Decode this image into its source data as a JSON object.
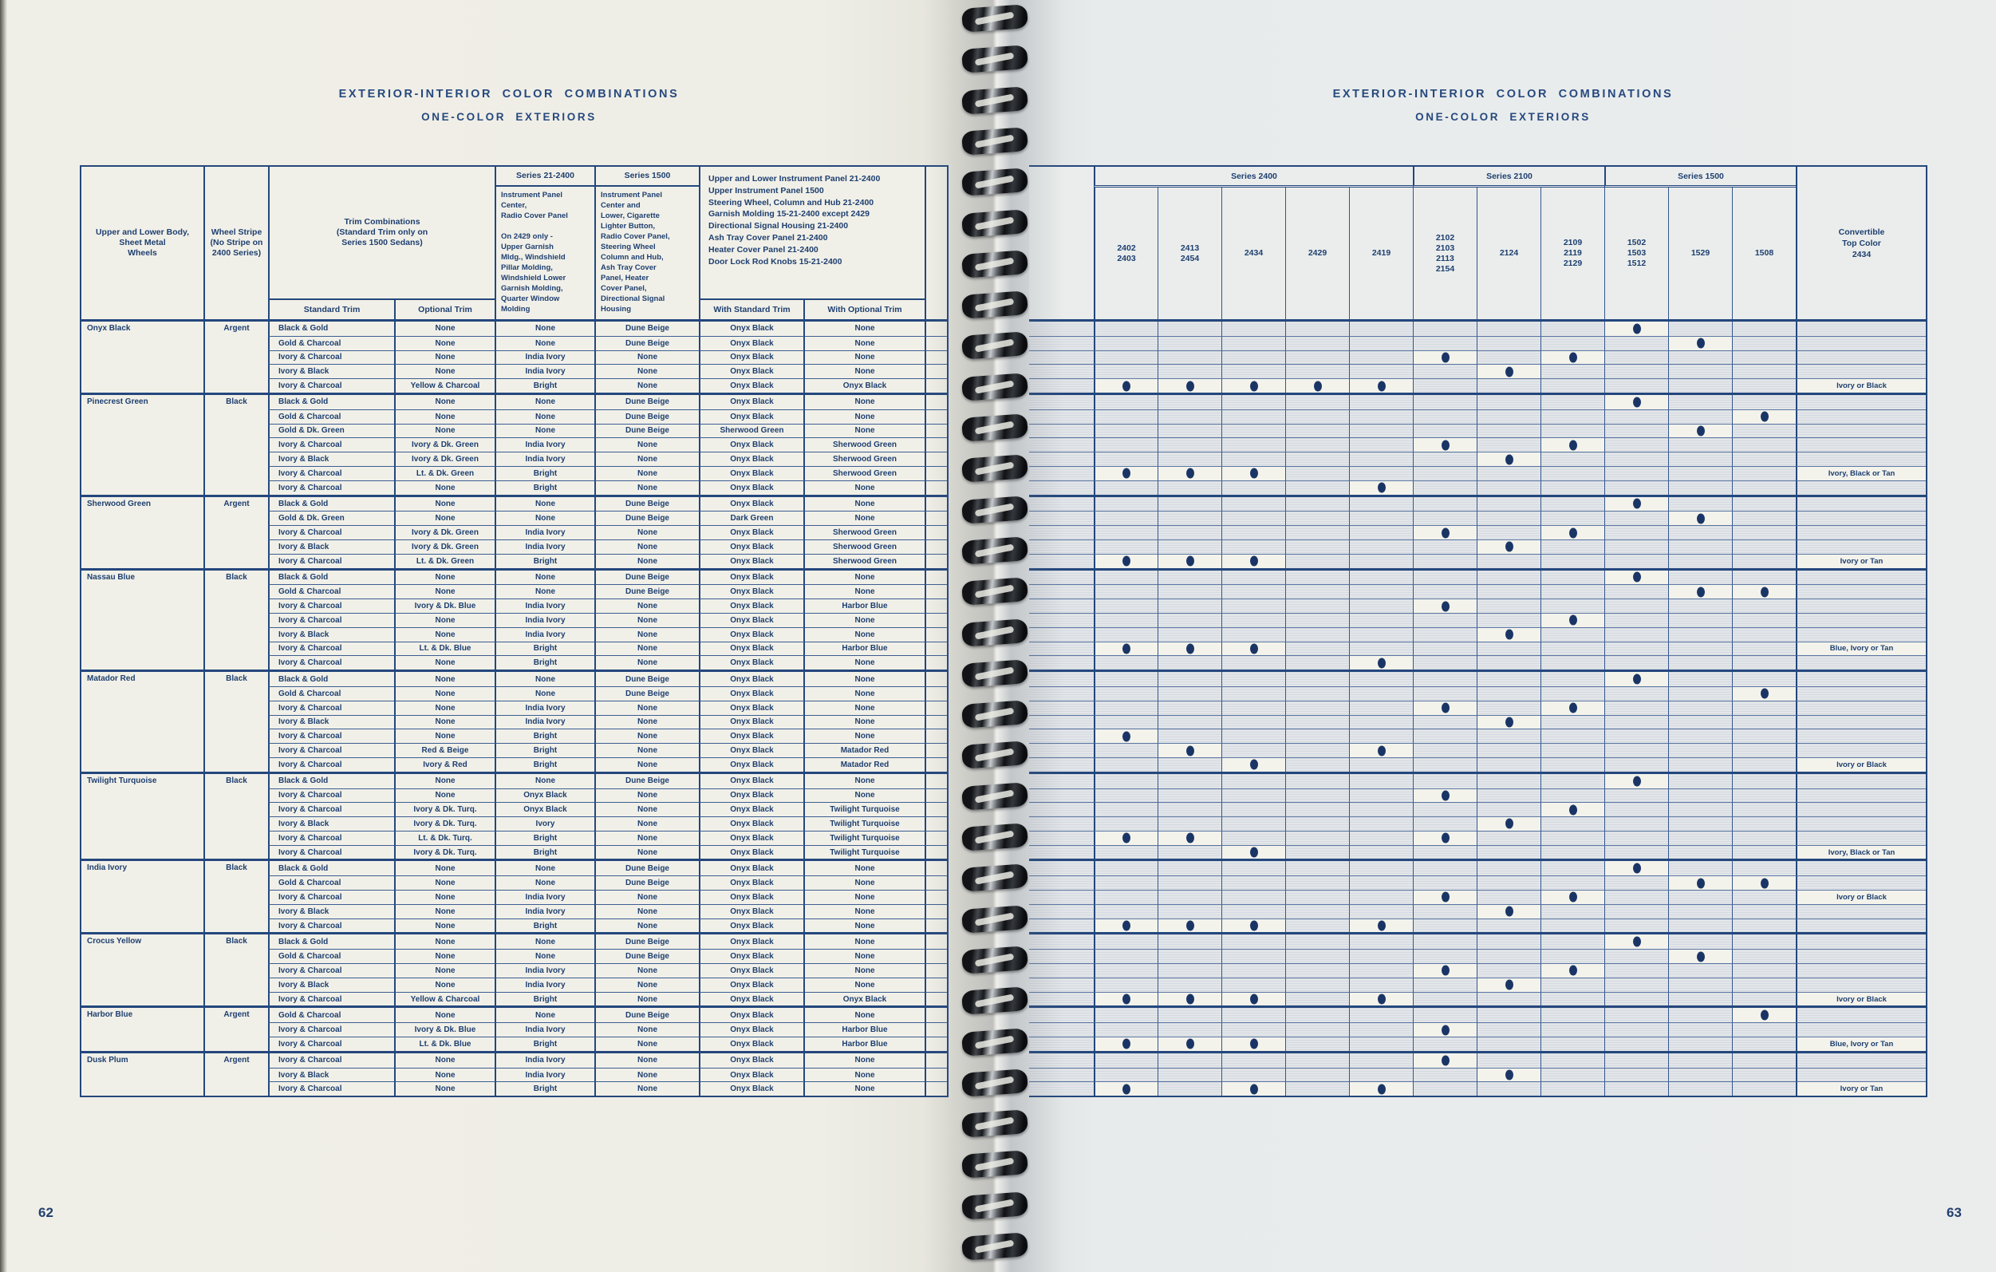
{
  "colors": {
    "line_navy": "#24477d",
    "text_navy": "#1e3f70",
    "dot_navy": "#1a3565",
    "paper_left": "#efeee6",
    "paper_right": "#e8ebec",
    "halftone_cell": "#dde1e7"
  },
  "page_left": {
    "page_number": "62",
    "title1": "EXTERIOR-INTERIOR COLOR COMBINATIONS",
    "title2": "ONE-COLOR EXTERIORS",
    "header": {
      "body": "Upper and Lower Body,\nSheet Metal\nWheels",
      "stripe": "Wheel Stripe\n(No Stripe on\n2400 Series)",
      "trim_group": "Trim Combinations\n(Standard Trim only on\nSeries 1500 Sedans)",
      "trim_std": "Standard Trim",
      "trim_opt": "Optional Trim",
      "s2124_label": "Series 21-2400",
      "s2124_text": "Instrument Panel\nCenter,\nRadio Cover Panel\n\nOn 2429 only -\nUpper Garnish\nMldg., Windshield\nPillar Molding,\nWindshield Lower\nGarnish Molding,\nQuarter Window\nMolding",
      "s1500_label": "Series 1500",
      "s1500_text": "Instrument Panel\nCenter and\nLower, Cigarette\nLighter Button,\nRadio Cover Panel,\nSteering Wheel\nColumn and Hub,\nAsh Tray Cover\nPanel, Heater\nCover Panel,\nDirectional Signal\nHousing",
      "panel_text": "Upper and Lower Instrument Panel 21-2400\nUpper Instrument Panel 1500\nSteering Wheel, Column and Hub 21-2400\nGarnish Molding 15-21-2400 except 2429\nDirectional Signal Housing 21-2400\nAsh Tray Cover Panel 21-2400\nHeater Cover Panel 21-2400\nDoor Lock Rod Knobs 15-21-2400",
      "with_std": "With Standard Trim",
      "with_opt": "With Optional Trim"
    }
  },
  "page_right": {
    "page_number": "63",
    "title1": "EXTERIOR-INTERIOR COLOR COMBINATIONS",
    "title2": "ONE-COLOR EXTERIORS",
    "series_groups": [
      {
        "label": "Series 2400",
        "span": 5
      },
      {
        "label": "Series 2100",
        "span": 3
      },
      {
        "label": "Series 1500",
        "span": 3
      }
    ],
    "models": [
      "2402\n2403",
      "2413\n2454",
      "2434",
      "2429",
      "2419",
      "2102\n2103\n2113\n2154",
      "2124",
      "2109\n2119\n2129",
      "1502\n1503\n1512",
      "1529",
      "1508"
    ],
    "convertible": "Convertible\nTop Color\n2434"
  },
  "groups": [
    {
      "color": "Onyx Black",
      "stripe": "Argent",
      "rows": [
        {
          "std": "Black & Gold",
          "opt": "None",
          "mold": "None",
          "s15": "Dune Beige",
          "wstd": "Onyx Black",
          "wopt": "None",
          "dots": [
            9
          ],
          "conv": ""
        },
        {
          "std": "Gold & Charcoal",
          "opt": "None",
          "mold": "None",
          "s15": "Dune Beige",
          "wstd": "Onyx Black",
          "wopt": "None",
          "dots": [
            10
          ],
          "conv": ""
        },
        {
          "std": "Ivory & Charcoal",
          "opt": "None",
          "mold": "India Ivory",
          "s15": "None",
          "wstd": "Onyx Black",
          "wopt": "None",
          "dots": [
            6,
            8
          ],
          "conv": ""
        },
        {
          "std": "Ivory & Black",
          "opt": "None",
          "mold": "India Ivory",
          "s15": "None",
          "wstd": "Onyx Black",
          "wopt": "None",
          "dots": [
            7
          ],
          "conv": ""
        },
        {
          "std": "Ivory & Charcoal",
          "opt": "Yellow & Charcoal",
          "mold": "Bright",
          "s15": "None",
          "wstd": "Onyx Black",
          "wopt": "Onyx Black",
          "dots": [
            1,
            2,
            3,
            4,
            5
          ],
          "conv": "Ivory or Black"
        }
      ]
    },
    {
      "color": "Pinecrest Green",
      "stripe": "Black",
      "rows": [
        {
          "std": "Black & Gold",
          "opt": "None",
          "mold": "None",
          "s15": "Dune Beige",
          "wstd": "Onyx Black",
          "wopt": "None",
          "dots": [
            9
          ],
          "conv": ""
        },
        {
          "std": "Gold & Charcoal",
          "opt": "None",
          "mold": "None",
          "s15": "Dune Beige",
          "wstd": "Onyx Black",
          "wopt": "None",
          "dots": [
            11
          ],
          "conv": ""
        },
        {
          "std": "Gold & Dk. Green",
          "opt": "None",
          "mold": "None",
          "s15": "Dune Beige",
          "wstd": "Sherwood Green",
          "wopt": "None",
          "dots": [
            10
          ],
          "conv": ""
        },
        {
          "std": "Ivory & Charcoal",
          "opt": "Ivory & Dk. Green",
          "mold": "India Ivory",
          "s15": "None",
          "wstd": "Onyx Black",
          "wopt": "Sherwood Green",
          "dots": [
            6,
            8
          ],
          "conv": ""
        },
        {
          "std": "Ivory & Black",
          "opt": "Ivory & Dk. Green",
          "mold": "India Ivory",
          "s15": "None",
          "wstd": "Onyx Black",
          "wopt": "Sherwood Green",
          "dots": [
            7
          ],
          "conv": ""
        },
        {
          "std": "Ivory & Charcoal",
          "opt": "Lt. & Dk. Green",
          "mold": "Bright",
          "s15": "None",
          "wstd": "Onyx Black",
          "wopt": "Sherwood Green",
          "dots": [
            1,
            2,
            3
          ],
          "conv": "Ivory, Black or Tan"
        },
        {
          "std": "Ivory & Charcoal",
          "opt": "None",
          "mold": "Bright",
          "s15": "None",
          "wstd": "Onyx Black",
          "wopt": "None",
          "dots": [
            5
          ],
          "conv": ""
        }
      ]
    },
    {
      "color": "Sherwood Green",
      "stripe": "Argent",
      "rows": [
        {
          "std": "Black & Gold",
          "opt": "None",
          "mold": "None",
          "s15": "Dune Beige",
          "wstd": "Onyx Black",
          "wopt": "None",
          "dots": [
            9
          ],
          "conv": ""
        },
        {
          "std": "Gold & Dk. Green",
          "opt": "None",
          "mold": "None",
          "s15": "Dune Beige",
          "wstd": "Dark Green",
          "wopt": "None",
          "dots": [
            10
          ],
          "conv": ""
        },
        {
          "std": "Ivory & Charcoal",
          "opt": "Ivory & Dk. Green",
          "mold": "India Ivory",
          "s15": "None",
          "wstd": "Onyx Black",
          "wopt": "Sherwood Green",
          "dots": [
            6,
            8
          ],
          "conv": ""
        },
        {
          "std": "Ivory & Black",
          "opt": "Ivory & Dk. Green",
          "mold": "India Ivory",
          "s15": "None",
          "wstd": "Onyx Black",
          "wopt": "Sherwood Green",
          "dots": [
            7
          ],
          "conv": ""
        },
        {
          "std": "Ivory & Charcoal",
          "opt": "Lt. & Dk. Green",
          "mold": "Bright",
          "s15": "None",
          "wstd": "Onyx Black",
          "wopt": "Sherwood Green",
          "dots": [
            1,
            2,
            3
          ],
          "conv": "Ivory or Tan"
        }
      ]
    },
    {
      "color": "Nassau Blue",
      "stripe": "Black",
      "rows": [
        {
          "std": "Black & Gold",
          "opt": "None",
          "mold": "None",
          "s15": "Dune Beige",
          "wstd": "Onyx Black",
          "wopt": "None",
          "dots": [
            9
          ],
          "conv": ""
        },
        {
          "std": "Gold & Charcoal",
          "opt": "None",
          "mold": "None",
          "s15": "Dune Beige",
          "wstd": "Onyx Black",
          "wopt": "None",
          "dots": [
            10,
            11
          ],
          "conv": ""
        },
        {
          "std": "Ivory & Charcoal",
          "opt": "Ivory & Dk. Blue",
          "mold": "India Ivory",
          "s15": "None",
          "wstd": "Onyx Black",
          "wopt": "Harbor Blue",
          "dots": [
            6
          ],
          "conv": ""
        },
        {
          "std": "Ivory & Charcoal",
          "opt": "None",
          "mold": "India Ivory",
          "s15": "None",
          "wstd": "Onyx Black",
          "wopt": "None",
          "dots": [
            8
          ],
          "conv": ""
        },
        {
          "std": "Ivory & Black",
          "opt": "None",
          "mold": "India Ivory",
          "s15": "None",
          "wstd": "Onyx Black",
          "wopt": "None",
          "dots": [
            7
          ],
          "conv": ""
        },
        {
          "std": "Ivory & Charcoal",
          "opt": "Lt. & Dk. Blue",
          "mold": "Bright",
          "s15": "None",
          "wstd": "Onyx Black",
          "wopt": "Harbor Blue",
          "dots": [
            1,
            2,
            3
          ],
          "conv": "Blue, Ivory or Tan"
        },
        {
          "std": "Ivory & Charcoal",
          "opt": "None",
          "mold": "Bright",
          "s15": "None",
          "wstd": "Onyx Black",
          "wopt": "None",
          "dots": [
            5
          ],
          "conv": ""
        }
      ]
    },
    {
      "color": "Matador Red",
      "stripe": "Black",
      "rows": [
        {
          "std": "Black & Gold",
          "opt": "None",
          "mold": "None",
          "s15": "Dune Beige",
          "wstd": "Onyx Black",
          "wopt": "None",
          "dots": [
            9
          ],
          "conv": ""
        },
        {
          "std": "Gold & Charcoal",
          "opt": "None",
          "mold": "None",
          "s15": "Dune Beige",
          "wstd": "Onyx Black",
          "wopt": "None",
          "dots": [
            11
          ],
          "conv": ""
        },
        {
          "std": "Ivory & Charcoal",
          "opt": "None",
          "mold": "India Ivory",
          "s15": "None",
          "wstd": "Onyx Black",
          "wopt": "None",
          "dots": [
            6,
            8
          ],
          "conv": ""
        },
        {
          "std": "Ivory & Black",
          "opt": "None",
          "mold": "India Ivory",
          "s15": "None",
          "wstd": "Onyx Black",
          "wopt": "None",
          "dots": [
            7
          ],
          "conv": ""
        },
        {
          "std": "Ivory & Charcoal",
          "opt": "None",
          "mold": "Bright",
          "s15": "None",
          "wstd": "Onyx Black",
          "wopt": "None",
          "dots": [
            1
          ],
          "conv": ""
        },
        {
          "std": "Ivory & Charcoal",
          "opt": "Red & Beige",
          "mold": "Bright",
          "s15": "None",
          "wstd": "Onyx Black",
          "wopt": "Matador Red",
          "dots": [
            2,
            5
          ],
          "conv": ""
        },
        {
          "std": "Ivory & Charcoal",
          "opt": "Ivory & Red",
          "mold": "Bright",
          "s15": "None",
          "wstd": "Onyx Black",
          "wopt": "Matador Red",
          "dots": [
            3
          ],
          "conv": "Ivory or Black"
        }
      ]
    },
    {
      "color": "Twilight Turquoise",
      "stripe": "Black",
      "rows": [
        {
          "std": "Black & Gold",
          "opt": "None",
          "mold": "None",
          "s15": "Dune Beige",
          "wstd": "Onyx Black",
          "wopt": "None",
          "dots": [
            9
          ],
          "conv": ""
        },
        {
          "std": "Ivory & Charcoal",
          "opt": "None",
          "mold": "Onyx Black",
          "s15": "None",
          "wstd": "Onyx Black",
          "wopt": "None",
          "dots": [
            6
          ],
          "conv": ""
        },
        {
          "std": "Ivory & Charcoal",
          "opt": "Ivory & Dk. Turq.",
          "mold": "Onyx Black",
          "s15": "None",
          "wstd": "Onyx Black",
          "wopt": "Twilight Turquoise",
          "dots": [
            8
          ],
          "conv": ""
        },
        {
          "std": "Ivory & Black",
          "opt": "Ivory & Dk. Turq.",
          "mold": "Ivory",
          "s15": "None",
          "wstd": "Onyx Black",
          "wopt": "Twilight Turquoise",
          "dots": [
            7
          ],
          "conv": ""
        },
        {
          "std": "Ivory & Charcoal",
          "opt": "Lt. & Dk. Turq.",
          "mold": "Bright",
          "s15": "None",
          "wstd": "Onyx Black",
          "wopt": "Twilight Turquoise",
          "dots": [
            1,
            2,
            6
          ],
          "conv": ""
        },
        {
          "std": "Ivory & Charcoal",
          "opt": "Ivory & Dk. Turq.",
          "mold": "Bright",
          "s15": "None",
          "wstd": "Onyx Black",
          "wopt": "Twilight Turquoise",
          "dots": [
            3
          ],
          "conv": "Ivory, Black or Tan"
        }
      ]
    },
    {
      "color": "India Ivory",
      "stripe": "Black",
      "rows": [
        {
          "std": "Black & Gold",
          "opt": "None",
          "mold": "None",
          "s15": "Dune Beige",
          "wstd": "Onyx Black",
          "wopt": "None",
          "dots": [
            9
          ],
          "conv": ""
        },
        {
          "std": "Gold & Charcoal",
          "opt": "None",
          "mold": "None",
          "s15": "Dune Beige",
          "wstd": "Onyx Black",
          "wopt": "None",
          "dots": [
            10,
            11
          ],
          "conv": ""
        },
        {
          "std": "Ivory & Charcoal",
          "opt": "None",
          "mold": "India Ivory",
          "s15": "None",
          "wstd": "Onyx Black",
          "wopt": "None",
          "dots": [
            6,
            8
          ],
          "conv": "Ivory or Black"
        },
        {
          "std": "Ivory & Black",
          "opt": "None",
          "mold": "India Ivory",
          "s15": "None",
          "wstd": "Onyx Black",
          "wopt": "None",
          "dots": [
            7
          ],
          "conv": ""
        },
        {
          "std": "Ivory & Charcoal",
          "opt": "None",
          "mold": "Bright",
          "s15": "None",
          "wstd": "Onyx Black",
          "wopt": "None",
          "dots": [
            1,
            2,
            3,
            5
          ],
          "conv": ""
        }
      ]
    },
    {
      "color": "Crocus Yellow",
      "stripe": "Black",
      "rows": [
        {
          "std": "Black & Gold",
          "opt": "None",
          "mold": "None",
          "s15": "Dune Beige",
          "wstd": "Onyx Black",
          "wopt": "None",
          "dots": [
            9
          ],
          "conv": ""
        },
        {
          "std": "Gold & Charcoal",
          "opt": "None",
          "mold": "None",
          "s15": "Dune Beige",
          "wstd": "Onyx Black",
          "wopt": "None",
          "dots": [
            10
          ],
          "conv": ""
        },
        {
          "std": "Ivory & Charcoal",
          "opt": "None",
          "mold": "India Ivory",
          "s15": "None",
          "wstd": "Onyx Black",
          "wopt": "None",
          "dots": [
            6,
            8
          ],
          "conv": ""
        },
        {
          "std": "Ivory & Black",
          "opt": "None",
          "mold": "India Ivory",
          "s15": "None",
          "wstd": "Onyx Black",
          "wopt": "None",
          "dots": [
            7
          ],
          "conv": ""
        },
        {
          "std": "Ivory & Charcoal",
          "opt": "Yellow & Charcoal",
          "mold": "Bright",
          "s15": "None",
          "wstd": "Onyx Black",
          "wopt": "Onyx Black",
          "dots": [
            1,
            2,
            3,
            5
          ],
          "conv": "Ivory or Black"
        }
      ]
    },
    {
      "color": "Harbor Blue",
      "stripe": "Argent",
      "rows": [
        {
          "std": "Gold & Charcoal",
          "opt": "None",
          "mold": "None",
          "s15": "Dune Beige",
          "wstd": "Onyx Black",
          "wopt": "None",
          "dots": [
            11
          ],
          "conv": ""
        },
        {
          "std": "Ivory & Charcoal",
          "opt": "Ivory & Dk. Blue",
          "mold": "India Ivory",
          "s15": "None",
          "wstd": "Onyx Black",
          "wopt": "Harbor Blue",
          "dots": [
            6
          ],
          "conv": ""
        },
        {
          "std": "Ivory & Charcoal",
          "opt": "Lt. & Dk. Blue",
          "mold": "Bright",
          "s15": "None",
          "wstd": "Onyx Black",
          "wopt": "Harbor Blue",
          "dots": [
            1,
            2,
            3
          ],
          "conv": "Blue, Ivory or Tan"
        }
      ]
    },
    {
      "color": "Dusk Plum",
      "stripe": "Argent",
      "rows": [
        {
          "std": "Ivory & Charcoal",
          "opt": "None",
          "mold": "India Ivory",
          "s15": "None",
          "wstd": "Onyx Black",
          "wopt": "None",
          "dots": [
            6
          ],
          "conv": ""
        },
        {
          "std": "Ivory & Black",
          "opt": "None",
          "mold": "India Ivory",
          "s15": "None",
          "wstd": "Onyx Black",
          "wopt": "None",
          "dots": [
            7
          ],
          "conv": ""
        },
        {
          "std": "Ivory & Charcoal",
          "opt": "None",
          "mold": "Bright",
          "s15": "None",
          "wstd": "Onyx Black",
          "wopt": "None",
          "dots": [
            1,
            3,
            5
          ],
          "conv": "Ivory or Tan"
        }
      ]
    }
  ]
}
